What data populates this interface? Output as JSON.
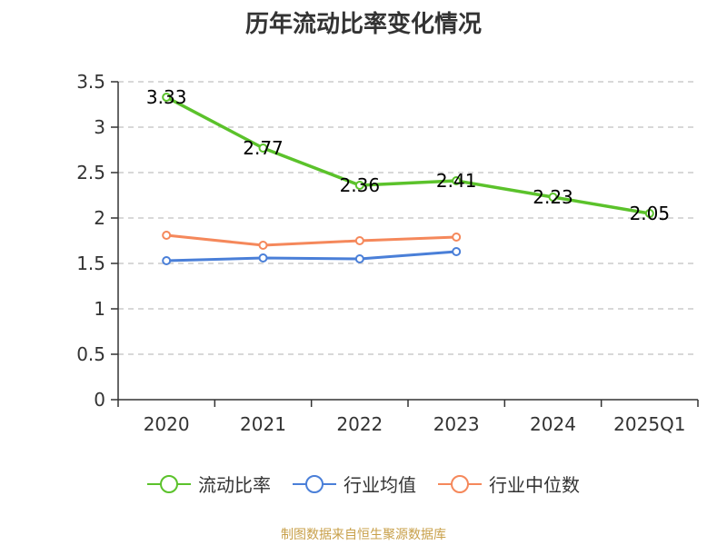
{
  "source": "制图数据来自恒生聚源数据库",
  "chart_data": {
    "type": "line",
    "title": "历年流动比率变化情况",
    "categories": [
      "2020",
      "2021",
      "2022",
      "2023",
      "2024",
      "2025Q1"
    ],
    "ylim": [
      0,
      3.5
    ],
    "yticks": [
      "0",
      "0.5",
      "1",
      "1.5",
      "2",
      "2.5",
      "3",
      "3.5"
    ],
    "grid": "horizontal-dashed",
    "legend_position": "bottom",
    "series": [
      {
        "name": "流动比率",
        "color": "#5bc22b",
        "values": [
          3.33,
          2.77,
          2.36,
          2.41,
          2.23,
          2.05
        ],
        "labels": [
          "3.33",
          "2.77",
          "2.36",
          "2.41",
          "2.23",
          "2.05"
        ]
      },
      {
        "name": "行业均值",
        "color": "#4a7fd8",
        "values": [
          1.53,
          1.56,
          1.55,
          1.63,
          null,
          null
        ]
      },
      {
        "name": "行业中位数",
        "color": "#f5885b",
        "values": [
          1.81,
          1.7,
          1.75,
          1.79,
          null,
          null
        ]
      }
    ]
  }
}
